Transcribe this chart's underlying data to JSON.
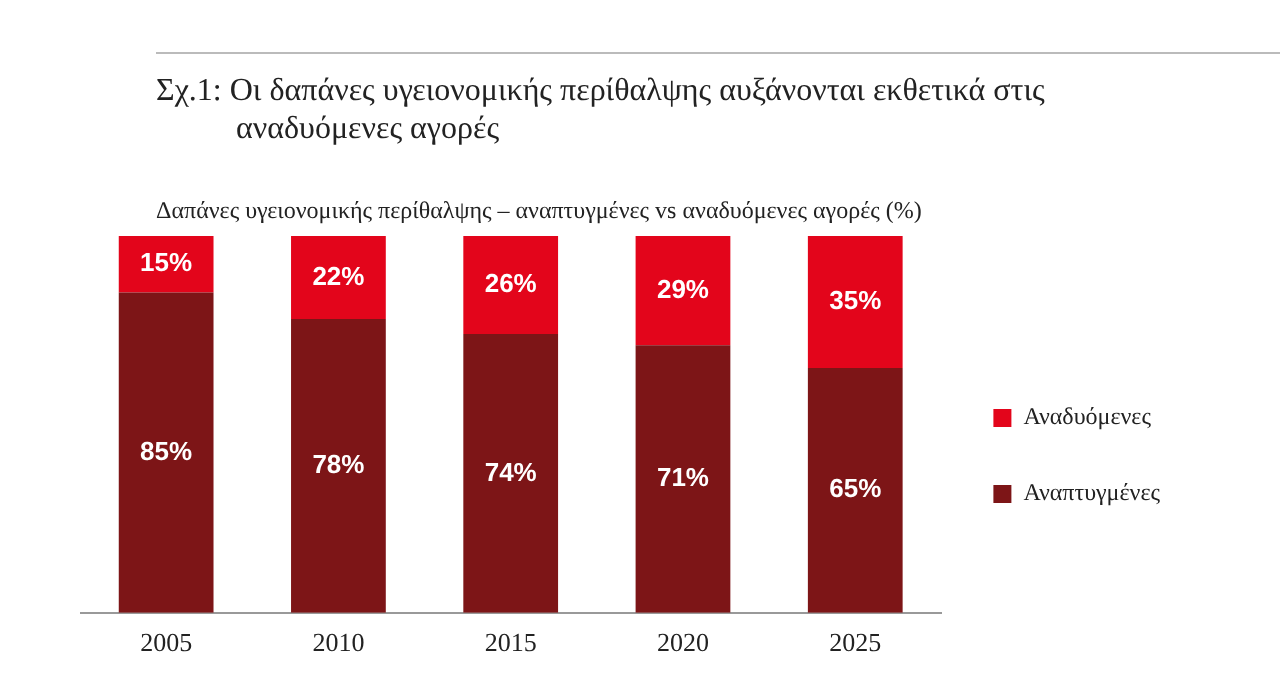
{
  "chart_data": {
    "type": "bar",
    "title": "Σχ.1: Οι δαπάνες υγειονομικής περίθαλψης αυξάνονται εκθετικά στις αναδυόμενες αγορές",
    "subtitle": "Δαπάνες υγειονομικής περίθαλψης – αναπτυγμένες vs αναδυόμενες αγορές (%)",
    "categories": [
      "2005",
      "2010",
      "2015",
      "2020",
      "2025"
    ],
    "stacked": true,
    "grid": false,
    "legend": "right",
    "series": [
      {
        "name": "Αναπτυγμένες",
        "color": "#7d1517",
        "values": [
          85,
          78,
          74,
          71,
          65
        ],
        "value_labels": [
          "85%",
          "78%",
          "74%",
          "71%",
          "65%"
        ]
      },
      {
        "name": "Αναδυόμενες",
        "color": "#e3051b",
        "values": [
          15,
          22,
          26,
          29,
          35
        ],
        "value_labels": [
          "15%",
          "22%",
          "26%",
          "29%",
          "35%"
        ]
      }
    ]
  }
}
